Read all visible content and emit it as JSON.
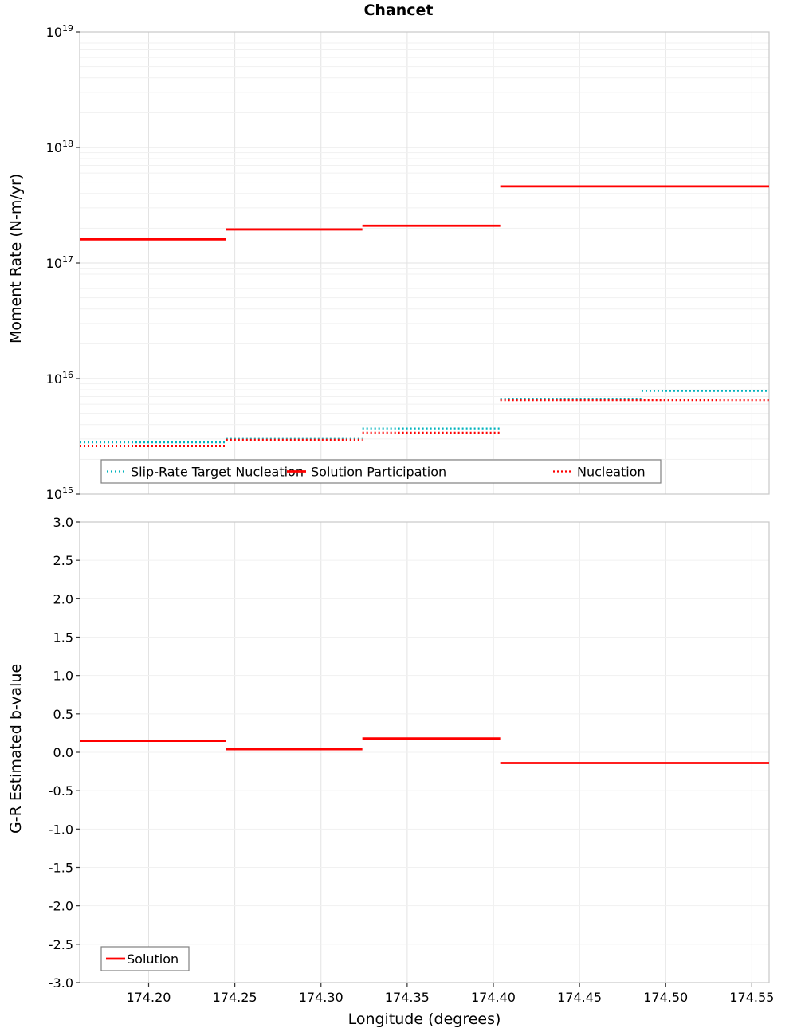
{
  "chart_data": [
    {
      "type": "line",
      "title": "Chancet",
      "ylabel": "Moment Rate (N-m/yr)",
      "yscale": "log",
      "xlim": [
        174.16,
        174.56
      ],
      "ylim": [
        1000000000000000.0,
        1e+19
      ],
      "ytick_exponents": [
        15,
        16,
        17,
        18,
        19
      ],
      "xticks": [
        174.2,
        174.25,
        174.3,
        174.35,
        174.4,
        174.45,
        174.5,
        174.55
      ],
      "grid": true,
      "legend_position": "lower-left",
      "series": [
        {
          "name": "Slip-Rate Target Nucleation",
          "color": "#00b2bc",
          "style": "dotted",
          "segments": [
            {
              "x0": 174.16,
              "x1": 174.245,
              "y": 2800000000000000.0
            },
            {
              "x0": 174.245,
              "x1": 174.324,
              "y": 3050000000000000.0
            },
            {
              "x0": 174.324,
              "x1": 174.404,
              "y": 3700000000000000.0
            },
            {
              "x0": 174.404,
              "x1": 174.486,
              "y": 6600000000000000.0
            },
            {
              "x0": 174.486,
              "x1": 174.56,
              "y": 7800000000000000.0
            }
          ]
        },
        {
          "name": "Solution Participation",
          "color": "#ff0000",
          "style": "solid",
          "segments": [
            {
              "x0": 174.16,
              "x1": 174.245,
              "y": 1.6e+17
            },
            {
              "x0": 174.245,
              "x1": 174.324,
              "y": 1.95e+17
            },
            {
              "x0": 174.324,
              "x1": 174.404,
              "y": 2.1e+17
            },
            {
              "x0": 174.404,
              "x1": 174.56,
              "y": 4.6e+17
            }
          ]
        },
        {
          "name": "Nucleation",
          "color": "#ff0000",
          "style": "dotted",
          "segments": [
            {
              "x0": 174.16,
              "x1": 174.245,
              "y": 2600000000000000.0
            },
            {
              "x0": 174.245,
              "x1": 174.324,
              "y": 2950000000000000.0
            },
            {
              "x0": 174.324,
              "x1": 174.404,
              "y": 3400000000000000.0
            },
            {
              "x0": 174.404,
              "x1": 174.56,
              "y": 6500000000000000.0
            }
          ]
        }
      ]
    },
    {
      "type": "line",
      "title": "",
      "ylabel": "G-R Estimated b-value",
      "xlabel": "Longitude (degrees)",
      "yscale": "linear",
      "xlim": [
        174.16,
        174.56
      ],
      "ylim": [
        -3.0,
        3.0
      ],
      "yticks": [
        3.0,
        2.5,
        2.0,
        1.5,
        1.0,
        0.5,
        0.0,
        -0.5,
        -1.0,
        -1.5,
        -2.0,
        -2.5,
        -3.0
      ],
      "xticks": [
        174.2,
        174.25,
        174.3,
        174.35,
        174.4,
        174.45,
        174.5,
        174.55
      ],
      "grid": true,
      "legend_position": "lower-left",
      "series": [
        {
          "name": "Solution",
          "color": "#ff0000",
          "style": "solid",
          "segments": [
            {
              "x0": 174.16,
              "x1": 174.245,
              "y": 0.15
            },
            {
              "x0": 174.245,
              "x1": 174.324,
              "y": 0.04
            },
            {
              "x0": 174.324,
              "x1": 174.404,
              "y": 0.18
            },
            {
              "x0": 174.404,
              "x1": 174.56,
              "y": -0.14
            }
          ]
        }
      ]
    }
  ]
}
